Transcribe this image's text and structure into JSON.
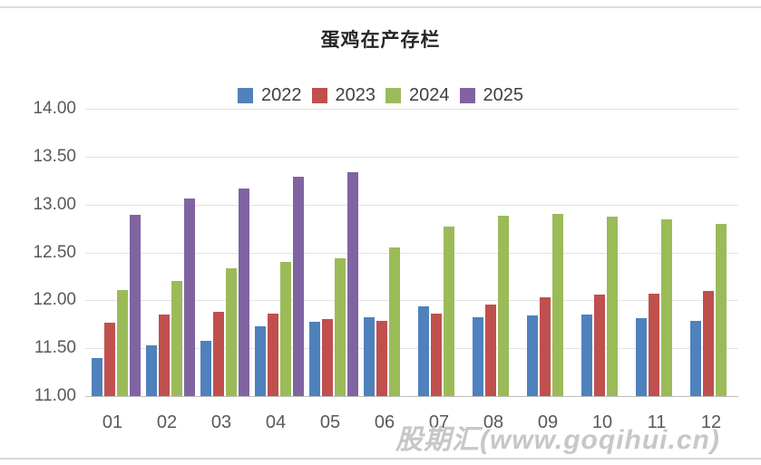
{
  "page": {
    "watermark": "股期汇(www.goqihui.cn)"
  },
  "chart_data": {
    "type": "bar",
    "title": "蛋鸡在产存栏",
    "xlabel": "",
    "ylabel": "",
    "categories": [
      "01",
      "02",
      "03",
      "04",
      "05",
      "06",
      "07",
      "08",
      "09",
      "10",
      "11",
      "12"
    ],
    "series": [
      {
        "name": "2022",
        "color": "#4F81BD",
        "values": [
          11.4,
          11.53,
          11.58,
          11.73,
          11.78,
          11.82,
          11.94,
          11.82,
          11.84,
          11.85,
          11.81,
          11.79
        ]
      },
      {
        "name": "2023",
        "color": "#C0504D",
        "values": [
          11.77,
          11.85,
          11.88,
          11.86,
          11.8,
          11.79,
          11.86,
          11.96,
          12.03,
          12.06,
          12.07,
          12.1
        ]
      },
      {
        "name": "2024",
        "color": "#9BBB59",
        "values": [
          12.11,
          12.2,
          12.33,
          12.4,
          12.44,
          12.55,
          12.77,
          12.88,
          12.9,
          12.87,
          12.85,
          12.8
        ]
      },
      {
        "name": "2025",
        "color": "#8064A2",
        "values": [
          12.89,
          13.06,
          13.17,
          13.29,
          13.34,
          null,
          null,
          null,
          null,
          null,
          null,
          null
        ]
      }
    ],
    "ylim": [
      11.0,
      14.0
    ],
    "y_ticks": [
      "14.00",
      "13.50",
      "13.00",
      "12.50",
      "12.00",
      "11.50",
      "11.00"
    ],
    "grid": true,
    "legend_position": "top"
  }
}
